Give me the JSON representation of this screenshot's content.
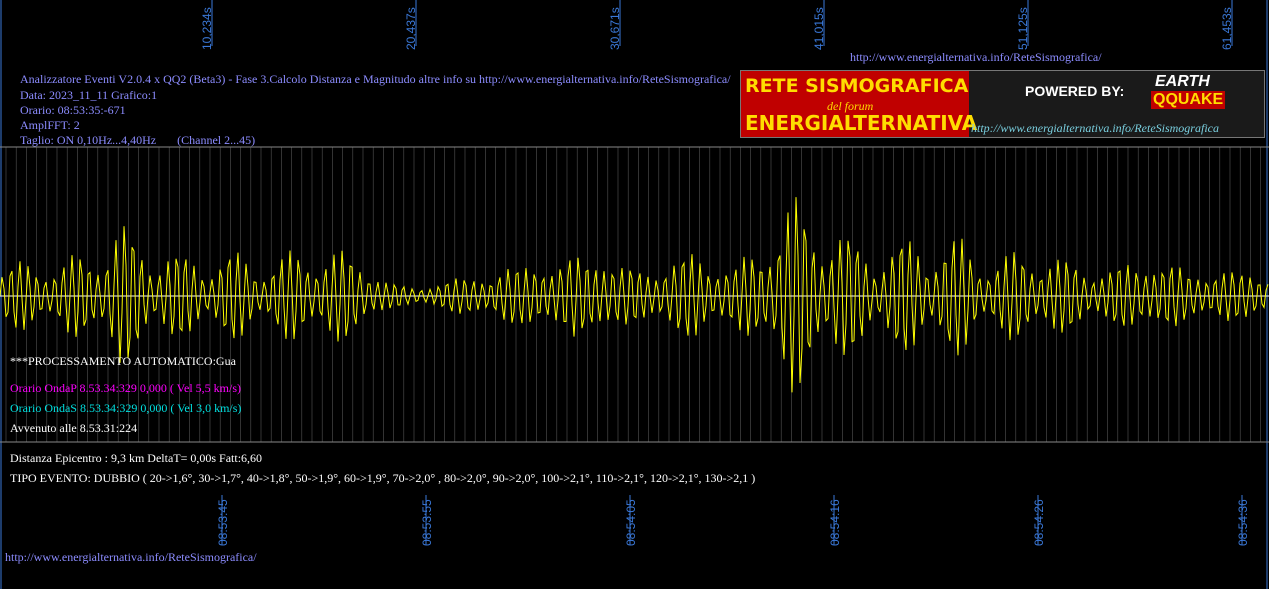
{
  "header": {
    "url_top": "http://www.energialternativa.info/ReteSismografica/",
    "info_lines": [
      "Analizzatore Eventi V2.0.4 x QQ2 (Beta3) - Fase 3.Calcolo Distanza e Magnitudo altre info su http://www.energialternativa.info/ReteSismografica/",
      "Data: 2023_11_11 Grafico:1",
      "Orario: 08:53:35:-671",
      "AmplFFT: 2",
      "Taglio: ON 0,10Hz...4,40Hz       (Channel 2...45)"
    ]
  },
  "logo": {
    "line1": "RETE SISMOGRAFICA",
    "forum": "del forum",
    "line2": "ENERGIALTERNATIVA",
    "powered": "POWERED BY:",
    "brand1": "EARTH",
    "brand2": "QQUAKE",
    "url": "http://www.energialternativa.info/ReteSismografica"
  },
  "chart_data": {
    "type": "line",
    "top_ticks": [
      "10,234s",
      "20,437s",
      "30,671s",
      "41,015s",
      "51,125s",
      "61,453s"
    ],
    "bottom_ticks": [
      "08:53:45",
      "08:53:55",
      "08:54:05",
      "08:54:16",
      "08:54:26",
      "08:54:36"
    ],
    "grid": true,
    "series": [
      {
        "color": "#ffff00",
        "envelope": [
          0.3,
          0.35,
          0.38,
          0.32,
          0.45,
          0.6,
          0.7,
          0.58,
          0.48,
          0.4,
          0.42,
          0.45,
          0.4,
          0.38,
          0.42,
          0.48,
          0.5,
          0.45,
          0.35,
          0.15,
          0.1,
          0.12,
          0.18,
          0.25,
          0.2,
          0.35,
          0.4,
          0.3,
          0.5,
          0.45,
          0.38,
          0.32,
          0.28,
          0.42,
          0.48,
          0.38,
          0.3,
          0.55,
          0.8,
          1.0,
          0.85,
          0.65,
          0.55,
          0.5,
          0.55,
          0.58,
          0.6,
          0.55,
          0.45,
          0.4,
          0.45,
          0.48,
          0.38,
          0.32,
          0.3,
          0.35,
          0.4,
          0.38,
          0.3,
          0.25,
          0.3,
          0.28,
          0.2
        ]
      }
    ]
  },
  "results": {
    "processing": "***PROCESSAMENTO AUTOMATICO:Gua",
    "onda_p": "Orario OndaP 8.53.34:329  0,000 ( Vel 5,5 km/s)",
    "onda_s": "Orario OndaS 8.53.34:329  0,000 ( Vel 3,0 km/s)",
    "avvenuto": "Avvenuto alle 8.53.31:224",
    "distanza": "Distanza Epicentro : 9,3 km DeltaT= 0,00s  Fatt:6,60",
    "tipo": "TIPO EVENTO: DUBBIO ( 20->1,6°, 30->1,7°, 40->1,8°, 50->1,9°, 60->1,9°, 70->2,0° , 80->2,0°, 90->2,0°, 100->2,1°, 110->2,1°, 120->2,1°, 130->2,1 )"
  },
  "footer": {
    "url": "http://www.energialternativa.info/ReteSismografica/"
  },
  "colors": {
    "wave": "#ffff00",
    "p_wave": "#ff00ff",
    "s_wave": "#00e0e0",
    "ticks": "#3a78d8",
    "info": "#8c8cff"
  }
}
